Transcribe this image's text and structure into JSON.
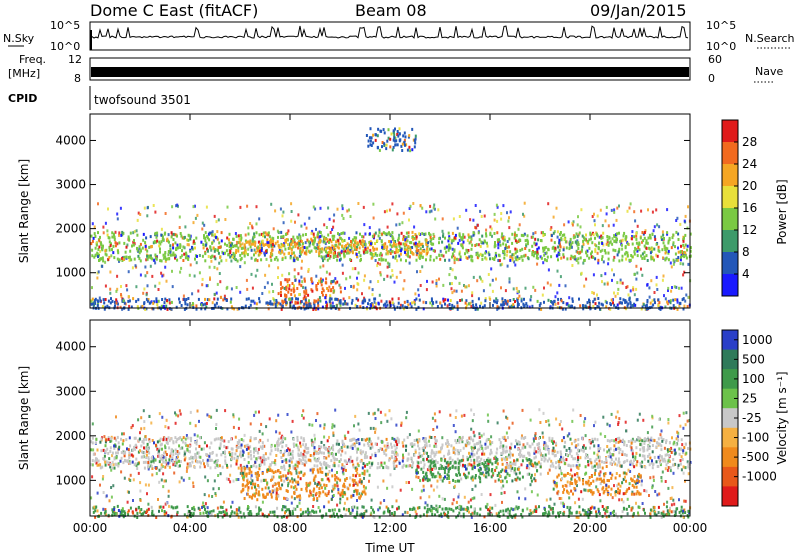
{
  "header": {
    "station": "Dome C East (fitACF)",
    "beam": "Beam 08",
    "date": "09/Jan/2015"
  },
  "top_panels": {
    "nsky_label": "N.Sky",
    "nsky_ticks": [
      "10^5",
      "10^0"
    ],
    "nsearch_label": "N.Search",
    "nsearch_ticks": [
      "10^5",
      "10^0"
    ],
    "freq_label_1": "Freq.",
    "freq_label_2": "[MHz]",
    "freq_ticks": [
      "12",
      "8"
    ],
    "nave_label": "Nave",
    "nave_ticks": [
      "60",
      "0"
    ],
    "cpid_label": "CPID",
    "cpid_value": "twofsound 3501"
  },
  "chart_data": [
    {
      "type": "heatmap",
      "name": "power",
      "ylabel": "Slant Range [km]",
      "yticks": [
        1000,
        2000,
        3000,
        4000
      ],
      "ylim": [
        200,
        4600
      ],
      "xlim": [
        "00:00",
        "24:00"
      ],
      "colorbar_label": "Power [dB]",
      "colorbar_ticks": [
        "28",
        "24",
        "20",
        "16",
        "12",
        "8",
        "4"
      ],
      "colorbar_colors": [
        "#1a1aff",
        "#2357b8",
        "#3d9a6a",
        "#7ac943",
        "#e8e03a",
        "#f5a623",
        "#f26a1f",
        "#e01b1b"
      ],
      "bands": [
        {
          "t0": 0.0,
          "t1": 24.0,
          "r0": 1300,
          "r1": 1950,
          "level": 16
        },
        {
          "t0": 5.5,
          "t1": 13.5,
          "r0": 1450,
          "r1": 1800,
          "level": 24
        },
        {
          "t0": 7.5,
          "t1": 10.0,
          "r0": 200,
          "r1": 900,
          "level": 28
        },
        {
          "t0": 11.0,
          "t1": 13.0,
          "r0": 3800,
          "r1": 4300,
          "level": 8
        },
        {
          "t0": 0.0,
          "t1": 24.0,
          "r0": 200,
          "r1": 450,
          "level": 8
        }
      ]
    },
    {
      "type": "heatmap",
      "name": "velocity",
      "ylabel": "Slant Range [km]",
      "yticks": [
        1000,
        2000,
        3000,
        4000
      ],
      "ylim": [
        200,
        4600
      ],
      "xlim": [
        "00:00",
        "24:00"
      ],
      "xticks": [
        "00:00",
        "04:00",
        "08:00",
        "12:00",
        "16:00",
        "20:00",
        "00:00"
      ],
      "xlabel": "Time UT",
      "colorbar_label": "Velocity [m s⁻¹]",
      "colorbar_ticks": [
        "1000",
        "500",
        "100",
        "25",
        "-25",
        "-100",
        "-500",
        "-1000"
      ],
      "colorbar_colors": [
        "#2a3fc8",
        "#2f7a5a",
        "#3f9a4a",
        "#6cc24a",
        "#c8c8c8",
        "#f5b041",
        "#f08a1c",
        "#e8581a",
        "#e01b1b"
      ],
      "bands": [
        {
          "t0": 0.0,
          "t1": 24.0,
          "r0": 1300,
          "r1": 2000,
          "level": 0
        },
        {
          "t0": 6.0,
          "t1": 11.0,
          "r0": 600,
          "r1": 1300,
          "level": -100
        },
        {
          "t0": 13.0,
          "t1": 18.0,
          "r0": 1000,
          "r1": 1500,
          "level": 100
        },
        {
          "t0": 18.5,
          "t1": 22.0,
          "r0": 700,
          "r1": 1200,
          "level": -100
        },
        {
          "t0": 0.0,
          "t1": 24.0,
          "r0": 200,
          "r1": 450,
          "level": 100
        }
      ]
    }
  ]
}
